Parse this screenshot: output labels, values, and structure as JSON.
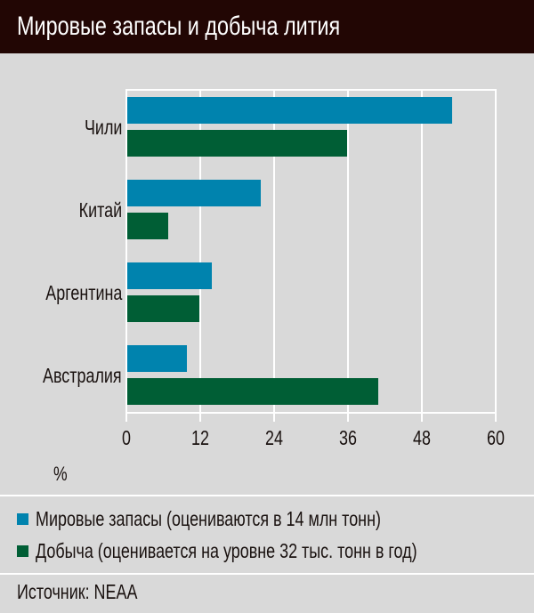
{
  "header": {
    "title": "Мировые запасы и добыча лития"
  },
  "chart_data": {
    "type": "bar",
    "orientation": "horizontal",
    "title": "Мировые запасы и добыча лития",
    "categories": [
      "Чили",
      "Китай",
      "Аргентина",
      "Австралия"
    ],
    "series": [
      {
        "name": "Мировые запасы (оцениваются в 14 млн тонн)",
        "color": "#0083ae",
        "values": [
          53,
          22,
          14,
          10
        ]
      },
      {
        "name": "Добыча (оценивается на уровне 32 тыс. тонн в год)",
        "color": "#005e35",
        "values": [
          36,
          7,
          12,
          41
        ]
      }
    ],
    "xlabel": "%",
    "ylabel": "",
    "xlim": [
      0,
      60
    ],
    "xticks": [
      "0",
      "12",
      "24",
      "36",
      "48",
      "60"
    ],
    "grid": true,
    "legend_position": "bottom"
  },
  "legend": {
    "items": [
      {
        "label": "Мировые запасы (оцениваются в 14 млн тонн)",
        "color": "#0083ae"
      },
      {
        "label": "Добыча (оценивается на уровне 32 тыс. тонн в год)",
        "color": "#005e35"
      }
    ]
  },
  "footer": {
    "source": "Источник: NEAA"
  }
}
